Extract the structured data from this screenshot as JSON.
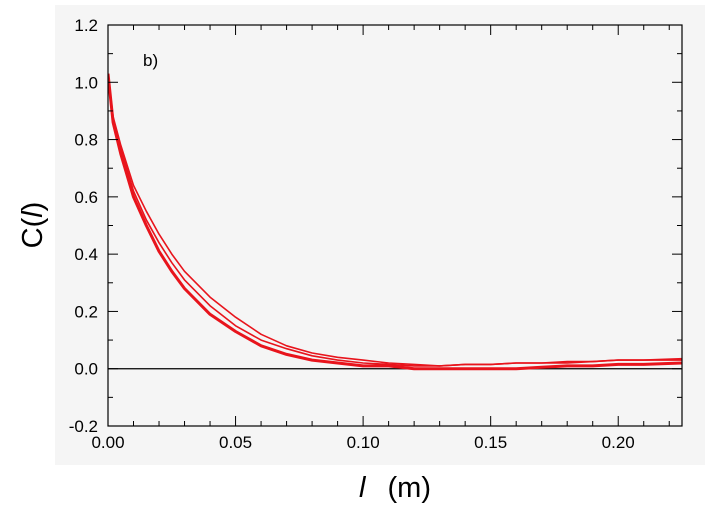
{
  "chart_data": {
    "type": "line",
    "panel_label": "b)",
    "xlabel": {
      "symbol": "l",
      "unit": "(m)"
    },
    "ylabel": {
      "prefix": "C(",
      "symbol": "l",
      "suffix": ")"
    },
    "xlim": [
      0.0,
      0.225
    ],
    "ylim": [
      -0.2,
      1.2
    ],
    "x_ticks": [
      "0.00",
      "0.05",
      "0.10",
      "0.15",
      "0.20"
    ],
    "x_tick_values": [
      0.0,
      0.05,
      0.1,
      0.15,
      0.2
    ],
    "y_ticks": [
      "-0.2",
      "0.0",
      "0.2",
      "0.4",
      "0.6",
      "0.8",
      "1.0",
      "1.2"
    ],
    "y_tick_values": [
      -0.2,
      0.0,
      0.2,
      0.4,
      0.6,
      0.8,
      1.0,
      1.2
    ],
    "zero_line": 0.0,
    "grid": false,
    "plot_background": "#f5f5f5",
    "series_color": "#e8141c",
    "series": [
      {
        "x": [
          0.0,
          0.002,
          0.005,
          0.01,
          0.015,
          0.02,
          0.025,
          0.03,
          0.04,
          0.05,
          0.06,
          0.07,
          0.08,
          0.09,
          0.1,
          0.11,
          0.12,
          0.13,
          0.14,
          0.15,
          0.16,
          0.17,
          0.18,
          0.19,
          0.2,
          0.21,
          0.225
        ],
        "y": [
          1.03,
          0.86,
          0.75,
          0.6,
          0.5,
          0.41,
          0.34,
          0.28,
          0.19,
          0.13,
          0.08,
          0.05,
          0.03,
          0.02,
          0.01,
          0.01,
          0.0,
          0.0,
          0.0,
          0.0,
          0.0,
          0.005,
          0.01,
          0.01,
          0.015,
          0.015,
          0.02
        ]
      },
      {
        "x": [
          0.0,
          0.002,
          0.005,
          0.01,
          0.015,
          0.02,
          0.025,
          0.03,
          0.04,
          0.05,
          0.06,
          0.07,
          0.08,
          0.09,
          0.1,
          0.11,
          0.12,
          0.13,
          0.14,
          0.15,
          0.16,
          0.17,
          0.18,
          0.19,
          0.2,
          0.21,
          0.225
        ],
        "y": [
          1.03,
          0.87,
          0.77,
          0.62,
          0.52,
          0.44,
          0.37,
          0.31,
          0.22,
          0.15,
          0.1,
          0.07,
          0.045,
          0.03,
          0.02,
          0.015,
          0.01,
          0.01,
          0.015,
          0.015,
          0.02,
          0.02,
          0.02,
          0.025,
          0.03,
          0.03,
          0.035
        ]
      },
      {
        "x": [
          0.0,
          0.002,
          0.005,
          0.01,
          0.015,
          0.02,
          0.025,
          0.03,
          0.04,
          0.05,
          0.06,
          0.07,
          0.08,
          0.09,
          0.1,
          0.11,
          0.12,
          0.13,
          0.14,
          0.15,
          0.16,
          0.17,
          0.18,
          0.19,
          0.2,
          0.21,
          0.225
        ],
        "y": [
          1.03,
          0.88,
          0.78,
          0.64,
          0.55,
          0.47,
          0.4,
          0.34,
          0.25,
          0.18,
          0.12,
          0.08,
          0.055,
          0.04,
          0.03,
          0.02,
          0.015,
          0.01,
          0.015,
          0.015,
          0.02,
          0.02,
          0.025,
          0.025,
          0.03,
          0.03,
          0.03
        ]
      }
    ]
  }
}
